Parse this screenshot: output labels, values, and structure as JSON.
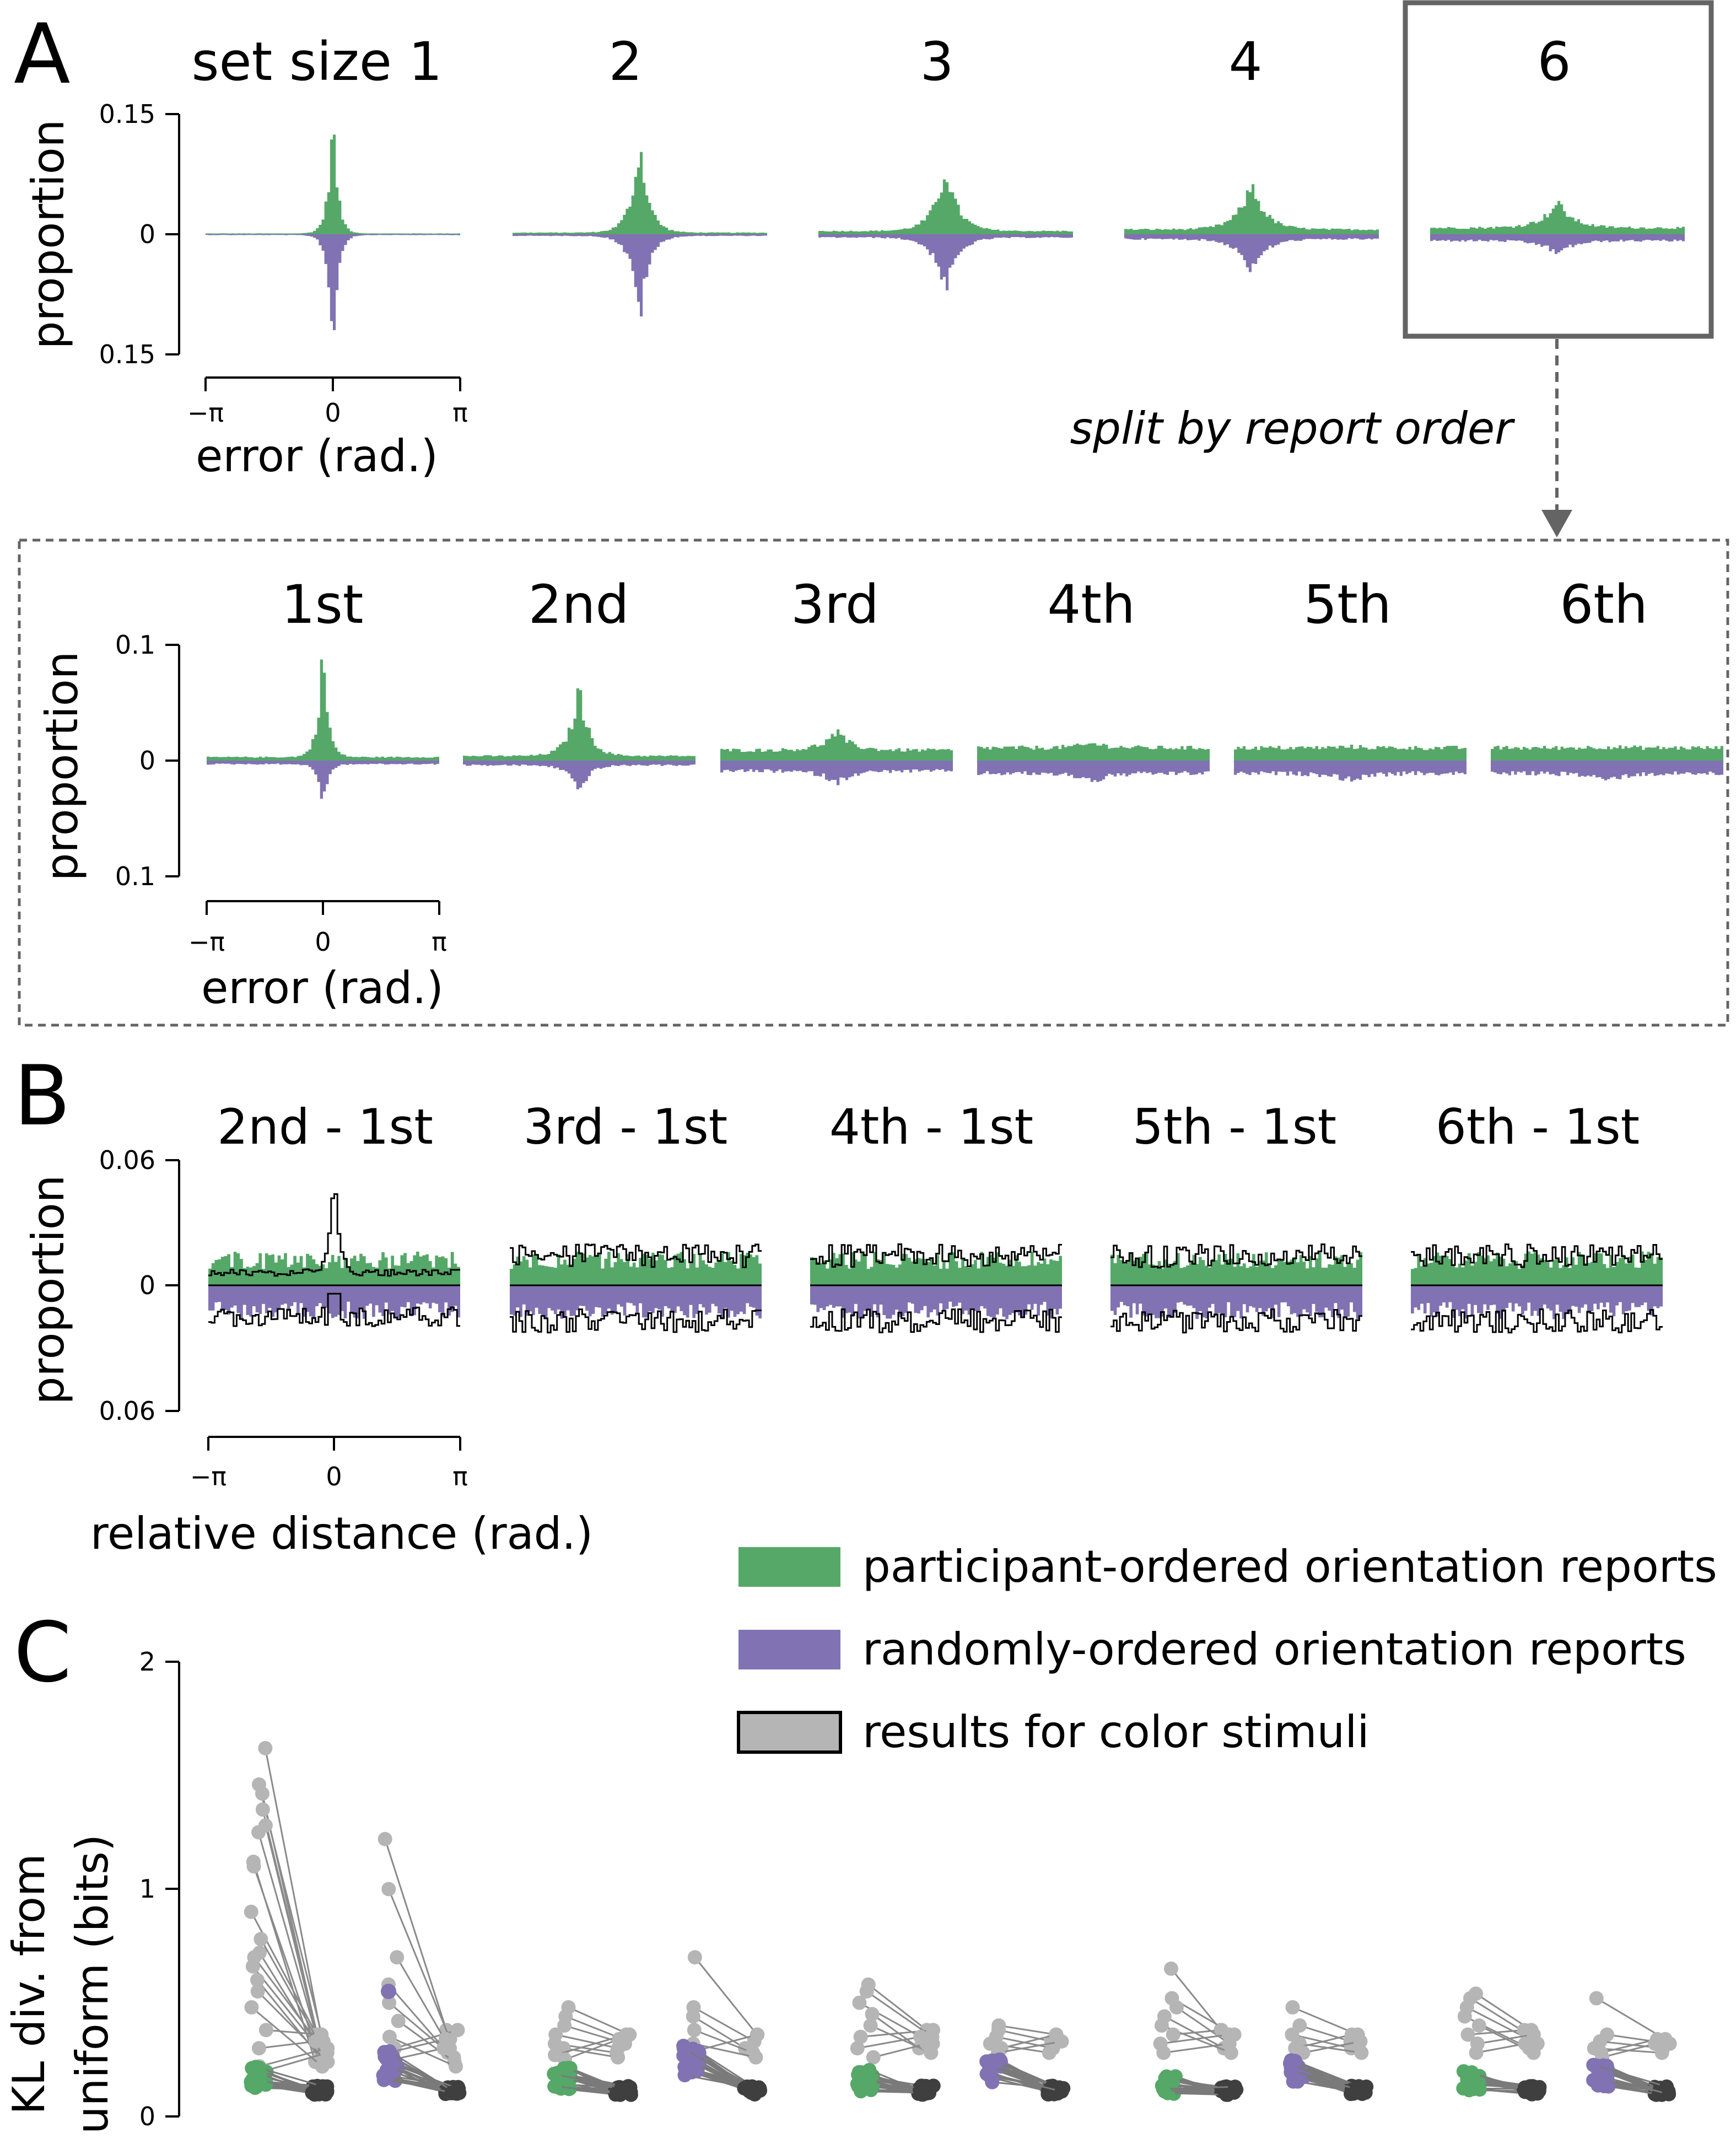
{
  "colors": {
    "participant": "#55a868",
    "random": "#8172b3",
    "color_light": "#b5b5b5",
    "color_dark": "#3f3f3f",
    "frame": "#646464"
  },
  "panel_A": {
    "letter": "A",
    "titles": [
      "set size 1",
      "2",
      "3",
      "4",
      "6"
    ],
    "ylabel": "proportion",
    "xlabel": "error (rad.)",
    "yticks": [
      "0.15",
      "0",
      "0.15"
    ],
    "xticks": [
      "−π",
      "0",
      "π"
    ],
    "split_label": "split by report order",
    "order_titles": [
      "1st",
      "2nd",
      "3rd",
      "4th",
      "5th",
      "6th"
    ],
    "order_yticks": [
      "0.1",
      "0",
      "0.1"
    ],
    "order_ylabel": "proportion",
    "order_xlabel": "error (rad.)",
    "order_xticks": [
      "−π",
      "0",
      "π"
    ]
  },
  "panel_B": {
    "letter": "B",
    "titles": [
      "2nd - 1st",
      "3rd  - 1st",
      "4th - 1st",
      "5th - 1st",
      "6th - 1st"
    ],
    "ylabel": "proportion",
    "xlabel": "relative distance (rad.)",
    "yticks": [
      "0.06",
      "0",
      "0.06"
    ],
    "xticks": [
      "−π",
      "0",
      "π"
    ]
  },
  "panel_C": {
    "letter": "C",
    "ylabel_line1": "KL div. from",
    "ylabel_line2": "uniform (bits)",
    "yticks": [
      "2",
      "1",
      "0"
    ]
  },
  "legend": [
    {
      "label": "participant-ordered orientation reports",
      "color": "#55a868"
    },
    {
      "label": "randomly-ordered orientation reports",
      "color": "#8172b3"
    },
    {
      "label": "results for color stimuli",
      "color": "#b5b5b5"
    }
  ],
  "chart_data": [
    {
      "type": "histogram",
      "panel": "A-top",
      "title": "set size 1 / 2 / 3 / 4 / 6",
      "xlabel": "error (rad.)",
      "ylabel": "proportion",
      "xlim": [
        -3.1416,
        3.1416
      ],
      "ylim": [
        -0.15,
        0.15
      ],
      "subplots": [
        {
          "title": "set size 1",
          "peak_participant": 0.15,
          "peak_random": 0.15,
          "width": 0.12,
          "floor": 0.001
        },
        {
          "title": "2",
          "peak_participant": 0.115,
          "peak_random": 0.105,
          "width": 0.22,
          "floor": 0.002
        },
        {
          "title": "3",
          "peak_participant": 0.083,
          "peak_random": 0.07,
          "width": 0.3,
          "floor": 0.004
        },
        {
          "title": "4",
          "peak_participant": 0.063,
          "peak_random": 0.047,
          "width": 0.34,
          "floor": 0.006
        },
        {
          "title": "6",
          "peak_participant": 0.04,
          "peak_random": 0.025,
          "width": 0.38,
          "floor": 0.008
        }
      ]
    },
    {
      "type": "histogram",
      "panel": "A-bottom",
      "title": "split by report order",
      "xlabel": "error (rad.)",
      "ylabel": "proportion",
      "xlim": [
        -3.1416,
        3.1416
      ],
      "ylim": [
        -0.1,
        0.1
      ],
      "subplots": [
        {
          "title": "1st",
          "peak_participant": 0.1,
          "peak_random": 0.038,
          "width": 0.14,
          "floor": 0.003
        },
        {
          "title": "2nd",
          "peak_participant": 0.063,
          "peak_random": 0.028,
          "width": 0.26,
          "floor": 0.004
        },
        {
          "title": "3rd",
          "peak_participant": 0.025,
          "peak_random": 0.02,
          "width": 0.38,
          "floor": 0.009
        },
        {
          "title": "4th",
          "peak_participant": 0.015,
          "peak_random": 0.018,
          "width": 0.45,
          "floor": 0.011
        },
        {
          "title": "5th",
          "peak_participant": 0.012,
          "peak_random": 0.017,
          "width": 0.5,
          "floor": 0.011
        },
        {
          "title": "6th",
          "peak_participant": 0.012,
          "peak_random": 0.017,
          "width": 0.5,
          "floor": 0.011
        }
      ]
    },
    {
      "type": "histogram",
      "panel": "B",
      "xlabel": "relative distance (rad.)",
      "ylabel": "proportion",
      "xlim": [
        -3.1416,
        3.1416
      ],
      "ylim": [
        -0.06,
        0.06
      ],
      "subplots": [
        {
          "title": "2nd - 1st",
          "participant_level": 0.012,
          "random_level": 0.012,
          "color_level": 0.006,
          "color_peak": 0.057
        },
        {
          "title": "3rd  - 1st",
          "participant_level": 0.012,
          "random_level": 0.012,
          "color_level": 0.014,
          "color_peak": 0
        },
        {
          "title": "4th - 1st",
          "participant_level": 0.012,
          "random_level": 0.012,
          "color_level": 0.014,
          "color_peak": 0
        },
        {
          "title": "5th - 1st",
          "participant_level": 0.012,
          "random_level": 0.012,
          "color_level": 0.014,
          "color_peak": 0
        },
        {
          "title": "6th - 1st",
          "participant_level": 0.012,
          "random_level": 0.012,
          "color_level": 0.014,
          "color_peak": 0
        }
      ]
    },
    {
      "type": "scatter",
      "panel": "C",
      "ylabel": "KL div. from uniform (bits)",
      "ylim": [
        0,
        2
      ],
      "groups": [
        {
          "condition": "participant",
          "orientation_mean": 0.17,
          "orientation_sd": 0.05,
          "color_first": [
            1.62,
            1.46,
            1.42,
            1.35,
            1.28,
            1.25,
            1.12,
            1.1,
            0.9,
            0.78,
            0.72,
            0.7,
            0.66,
            0.6,
            0.55,
            0.48,
            0.38,
            0.3,
            0.22,
            0.2
          ],
          "color_second": [
            0.36,
            0.33,
            0.3,
            0.28,
            0.26,
            0.25,
            0.24,
            0.22
          ]
        },
        {
          "condition": "random",
          "orientation_mean": 0.22,
          "orientation_sd": 0.07,
          "color_first": [
            1.22,
            1.0,
            0.7,
            0.58,
            0.5,
            0.42,
            0.35,
            0.3,
            0.28,
            0.25
          ],
          "color_second": [
            0.38,
            0.34,
            0.3,
            0.28,
            0.26,
            0.24,
            0.22
          ]
        },
        {
          "condition": "participant",
          "orientation_mean": 0.17,
          "orientation_sd": 0.05,
          "color_first": [
            0.48,
            0.44,
            0.4,
            0.36,
            0.32,
            0.3,
            0.27,
            0.25
          ],
          "color_second": [
            0.36,
            0.34,
            0.32,
            0.3,
            0.28,
            0.26
          ]
        },
        {
          "condition": "random",
          "orientation_mean": 0.25,
          "orientation_sd": 0.07,
          "color_first": [
            0.7,
            0.48,
            0.44,
            0.38,
            0.32,
            0.28
          ],
          "color_second": [
            0.36,
            0.33,
            0.3,
            0.28,
            0.26
          ]
        },
        {
          "condition": "participant",
          "orientation_mean": 0.16,
          "orientation_sd": 0.05,
          "color_first": [
            0.58,
            0.55,
            0.5,
            0.45,
            0.4,
            0.35,
            0.3,
            0.26
          ],
          "color_second": [
            0.38,
            0.35,
            0.32,
            0.3,
            0.28
          ]
        },
        {
          "condition": "random",
          "orientation_mean": 0.2,
          "orientation_sd": 0.05,
          "color_first": [
            0.4,
            0.38,
            0.35,
            0.32,
            0.3,
            0.28
          ],
          "color_second": [
            0.36,
            0.33,
            0.3,
            0.28
          ]
        },
        {
          "condition": "participant",
          "orientation_mean": 0.14,
          "orientation_sd": 0.04,
          "color_first": [
            0.65,
            0.52,
            0.48,
            0.44,
            0.4,
            0.36,
            0.32,
            0.28
          ],
          "color_second": [
            0.38,
            0.36,
            0.32,
            0.3,
            0.28
          ]
        },
        {
          "condition": "random",
          "orientation_mean": 0.2,
          "orientation_sd": 0.05,
          "color_first": [
            0.48,
            0.4,
            0.36,
            0.32,
            0.3,
            0.28
          ],
          "color_second": [
            0.36,
            0.33,
            0.3,
            0.28
          ]
        },
        {
          "condition": "participant",
          "orientation_mean": 0.16,
          "orientation_sd": 0.05,
          "color_first": [
            0.54,
            0.52,
            0.48,
            0.44,
            0.4,
            0.36,
            0.32,
            0.28
          ],
          "color_second": [
            0.38,
            0.36,
            0.32,
            0.3,
            0.28
          ]
        },
        {
          "condition": "random",
          "orientation_mean": 0.18,
          "orientation_sd": 0.05,
          "color_first": [
            0.52,
            0.36,
            0.33,
            0.3,
            0.28,
            0.26
          ],
          "color_second": [
            0.34,
            0.32,
            0.3,
            0.28
          ]
        }
      ]
    }
  ]
}
